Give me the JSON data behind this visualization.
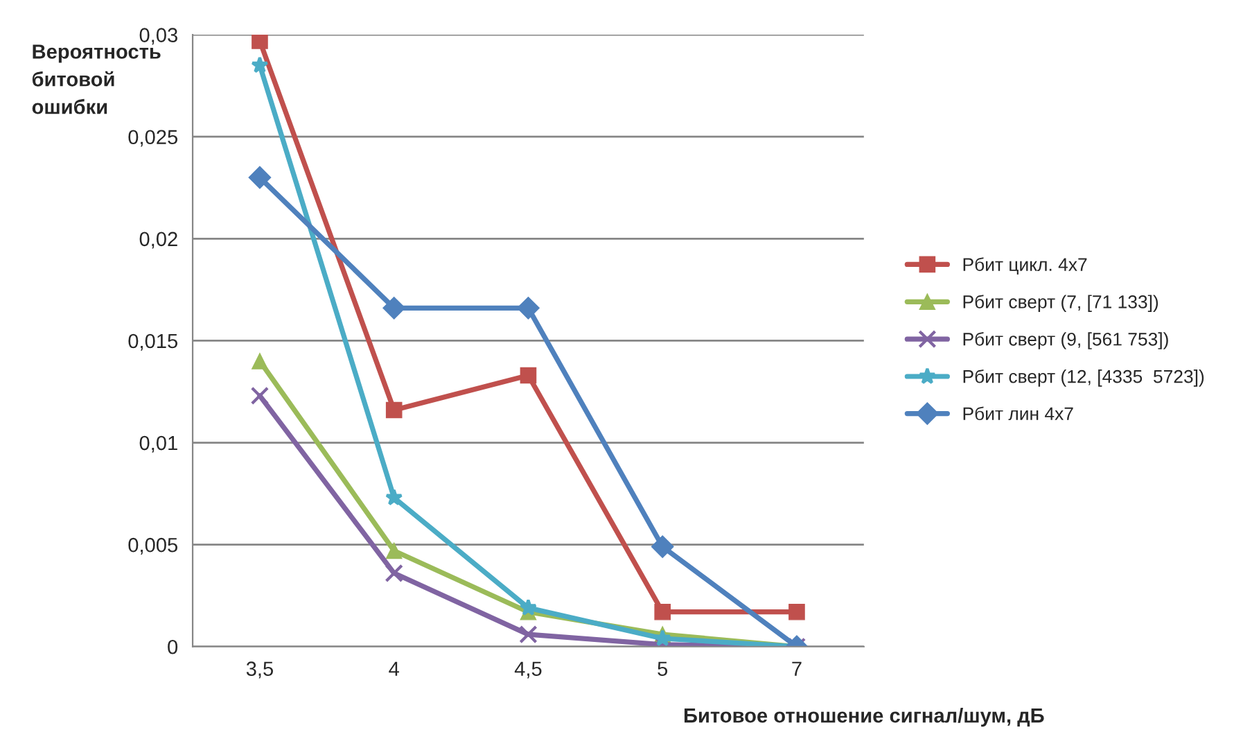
{
  "chart_data": {
    "type": "line",
    "ylabel": "Вероятность\nбитовой\nошибки",
    "xlabel": "Битовое отношение сигнал/шум, дБ",
    "categories": [
      "3,5",
      "4",
      "4,5",
      "5",
      "7"
    ],
    "ylim": [
      0,
      0.03
    ],
    "yticks": [
      {
        "value": 0,
        "label": "0"
      },
      {
        "value": 0.005,
        "label": "0,005"
      },
      {
        "value": 0.01,
        "label": "0,01"
      },
      {
        "value": 0.015,
        "label": "0,015"
      },
      {
        "value": 0.02,
        "label": "0,02"
      },
      {
        "value": 0.025,
        "label": "0,025"
      },
      {
        "value": 0.03,
        "label": "0,03"
      }
    ],
    "grid": "y",
    "legend": "right",
    "series": [
      {
        "name": "Рбит цикл. 4x7",
        "color": "#c0504d",
        "marker": "square",
        "values": [
          0.0297,
          0.0116,
          0.0133,
          0.0017,
          0.0017
        ]
      },
      {
        "name": "Рбит сверт (7, [71 133])",
        "color": "#9bbb59",
        "marker": "triangle",
        "values": [
          0.014,
          0.0047,
          0.0017,
          0.0006,
          0.0
        ]
      },
      {
        "name": "Рбит сверт (9, [561 753])",
        "color": "#8064a2",
        "marker": "cross",
        "values": [
          0.0123,
          0.0036,
          0.0006,
          0.0001,
          0.0
        ]
      },
      {
        "name": "Рбит сверт (12, [4335  5723])",
        "color": "#4bacc6",
        "marker": "star",
        "values": [
          0.0285,
          0.0073,
          0.0019,
          0.0004,
          0.0
        ]
      },
      {
        "name": "Рбит лин 4x7",
        "color": "#4f81bd",
        "marker": "diamond",
        "values": [
          0.023,
          0.0166,
          0.0166,
          0.0049,
          0.0
        ]
      }
    ]
  }
}
